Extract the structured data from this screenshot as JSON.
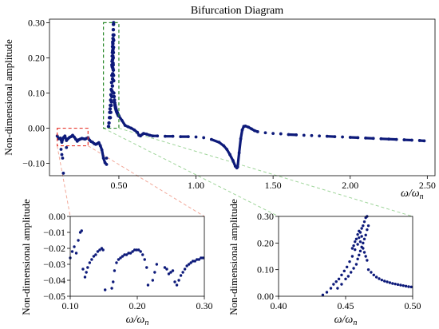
{
  "figure": {
    "marker_color": "#0d1a7a",
    "zoom_box_left_color": "#e8392f",
    "zoom_box_right_color": "#2e8b2e",
    "connector_left_color": "#f2a99a",
    "connector_right_color": "#9fd59a"
  },
  "chart_data": [
    {
      "id": "main",
      "type": "scatter",
      "title": "Bifurcation Diagram",
      "xlabel": "ω/ω",
      "xlabel_sub": "n",
      "ylabel": "Non-dimensional amplitude",
      "xlim": [
        0.05,
        2.55
      ],
      "ylim": [
        -0.135,
        0.31
      ],
      "xticks": [
        0.5,
        1.0,
        1.5,
        2.0,
        2.5
      ],
      "xtick_labels": [
        "0.50",
        "1.00",
        "1.50",
        "2.00",
        "2.50"
      ],
      "yticks": [
        -0.1,
        0.0,
        0.1,
        0.2,
        0.3
      ],
      "ytick_labels": [
        "−0.10",
        "0.00",
        "0.10",
        "0.20",
        "0.30"
      ],
      "grid": false,
      "series": [
        {
          "curve": [
            [
              0.1,
              -0.022
            ],
            [
              0.11,
              -0.03
            ],
            [
              0.12,
              -0.028
            ],
            [
              0.13,
              -0.04
            ],
            [
              0.14,
              -0.027
            ],
            [
              0.15,
              -0.022
            ],
            [
              0.16,
              -0.035
            ],
            [
              0.17,
              -0.03
            ],
            [
              0.18,
              -0.026
            ],
            [
              0.19,
              -0.024
            ],
            [
              0.2,
              -0.02
            ],
            [
              0.21,
              -0.025
            ],
            [
              0.22,
              -0.031
            ],
            [
              0.23,
              -0.037
            ],
            [
              0.24,
              -0.033
            ],
            [
              0.25,
              -0.031
            ],
            [
              0.26,
              -0.029
            ],
            [
              0.27,
              -0.03
            ],
            [
              0.28,
              -0.031
            ],
            [
              0.29,
              -0.029
            ],
            [
              0.3,
              -0.027
            ],
            [
              0.31,
              -0.034
            ],
            [
              0.32,
              -0.038
            ],
            [
              0.33,
              -0.04
            ],
            [
              0.34,
              -0.044
            ],
            [
              0.35,
              -0.046
            ],
            [
              0.36,
              -0.044
            ],
            [
              0.37,
              -0.041
            ],
            [
              0.38,
              -0.05
            ],
            [
              0.39,
              -0.062
            ],
            [
              0.4,
              -0.085
            ],
            [
              0.41,
              -0.098
            ],
            [
              0.42,
              -0.103
            ],
            [
              0.5,
              0.035
            ],
            [
              0.52,
              0.022
            ],
            [
              0.54,
              0.008
            ],
            [
              0.56,
              0.004
            ],
            [
              0.58,
              0.0
            ],
            [
              0.6,
              -0.005
            ],
            [
              0.62,
              -0.012
            ],
            [
              0.63,
              -0.02
            ],
            [
              0.64,
              -0.022
            ],
            [
              0.65,
              -0.018
            ],
            [
              0.66,
              -0.015
            ],
            [
              0.68,
              -0.017
            ],
            [
              0.7,
              -0.02
            ],
            [
              0.72,
              -0.022
            ],
            [
              0.75,
              -0.022
            ],
            [
              0.8,
              -0.023
            ],
            [
              0.85,
              -0.023
            ],
            [
              0.9,
              -0.024
            ],
            [
              0.95,
              -0.024
            ],
            [
              1.0,
              -0.025
            ],
            [
              1.05,
              -0.027
            ],
            [
              1.1,
              -0.032
            ],
            [
              1.15,
              -0.04
            ],
            [
              1.18,
              -0.05
            ],
            [
              1.2,
              -0.06
            ],
            [
              1.22,
              -0.075
            ],
            [
              1.24,
              -0.092
            ],
            [
              1.255,
              -0.108
            ],
            [
              1.265,
              -0.113
            ],
            [
              1.27,
              -0.11
            ],
            [
              1.28,
              -0.07
            ],
            [
              1.29,
              -0.03
            ],
            [
              1.3,
              -0.005
            ],
            [
              1.31,
              0.005
            ],
            [
              1.32,
              0.006
            ],
            [
              1.34,
              0.003
            ],
            [
              1.36,
              -0.002
            ],
            [
              1.38,
              -0.007
            ],
            [
              1.4,
              -0.01
            ],
            [
              1.45,
              -0.013
            ],
            [
              1.5,
              -0.015
            ],
            [
              1.55,
              -0.016
            ],
            [
              1.6,
              -0.018
            ],
            [
              1.65,
              -0.019
            ],
            [
              1.7,
              -0.02
            ],
            [
              1.75,
              -0.021
            ],
            [
              1.8,
              -0.022
            ],
            [
              1.85,
              -0.023
            ],
            [
              1.9,
              -0.024
            ],
            [
              1.95,
              -0.025
            ],
            [
              2.0,
              -0.026
            ],
            [
              2.05,
              -0.027
            ],
            [
              2.1,
              -0.028
            ],
            [
              2.15,
              -0.029
            ],
            [
              2.2,
              -0.03
            ],
            [
              2.25,
              -0.031
            ],
            [
              2.3,
              -0.032
            ],
            [
              2.35,
              -0.033
            ],
            [
              2.4,
              -0.034
            ],
            [
              2.45,
              -0.035
            ],
            [
              2.48,
              -0.036
            ]
          ],
          "points": [
            [
              0.13,
              -0.075
            ],
            [
              0.135,
              -0.085
            ],
            [
              0.14,
              -0.128
            ],
            [
              0.125,
              -0.06
            ],
            [
              0.16,
              -0.055
            ],
            [
              0.42,
              -0.085
            ]
          ]
        }
      ],
      "zoom_boxes": [
        {
          "x": [
            0.1,
            0.3
          ],
          "y": [
            -0.05,
            0.0
          ],
          "color_key": "zoom_box_left_color"
        },
        {
          "x": [
            0.4,
            0.5
          ],
          "y": [
            0.0,
            0.3
          ],
          "color_key": "zoom_box_right_color"
        }
      ]
    },
    {
      "id": "inset_left",
      "type": "scatter",
      "xlabel": "ω/ω",
      "xlabel_sub": "n",
      "ylabel": "Non-dimensional amplitude",
      "xlim": [
        0.1,
        0.3
      ],
      "ylim": [
        -0.05,
        0.0
      ],
      "xticks": [
        0.1,
        0.2,
        0.3
      ],
      "xtick_labels": [
        "0.10",
        "0.20",
        "0.30"
      ],
      "yticks": [
        0.0,
        -0.01,
        -0.02,
        -0.03,
        -0.04,
        -0.05
      ],
      "ytick_labels": [
        "0.00",
        "−0.01",
        "−0.02",
        "−0.03",
        "−0.04",
        "−0.05"
      ],
      "grid": false,
      "points": [
        [
          0.1,
          -0.026
        ],
        [
          0.103,
          -0.022
        ],
        [
          0.106,
          -0.019
        ],
        [
          0.109,
          -0.023
        ],
        [
          0.112,
          -0.015
        ],
        [
          0.115,
          -0.01
        ],
        [
          0.117,
          -0.009
        ],
        [
          0.119,
          -0.033
        ],
        [
          0.122,
          -0.038
        ],
        [
          0.124,
          -0.035
        ],
        [
          0.126,
          -0.032
        ],
        [
          0.129,
          -0.029
        ],
        [
          0.132,
          -0.027
        ],
        [
          0.135,
          -0.025
        ],
        [
          0.138,
          -0.024
        ],
        [
          0.141,
          -0.022
        ],
        [
          0.144,
          -0.021
        ],
        [
          0.147,
          -0.02
        ],
        [
          0.149,
          -0.021
        ],
        [
          0.152,
          -0.046
        ],
        [
          0.162,
          -0.045
        ],
        [
          0.164,
          -0.041
        ],
        [
          0.166,
          -0.034
        ],
        [
          0.169,
          -0.029
        ],
        [
          0.172,
          -0.027
        ],
        [
          0.175,
          -0.026
        ],
        [
          0.178,
          -0.025
        ],
        [
          0.181,
          -0.024
        ],
        [
          0.184,
          -0.024
        ],
        [
          0.187,
          -0.023
        ],
        [
          0.19,
          -0.023
        ],
        [
          0.193,
          -0.022
        ],
        [
          0.196,
          -0.021
        ],
        [
          0.199,
          -0.021
        ],
        [
          0.202,
          -0.021
        ],
        [
          0.205,
          -0.022
        ],
        [
          0.208,
          -0.024
        ],
        [
          0.211,
          -0.027
        ],
        [
          0.214,
          -0.032
        ],
        [
          0.216,
          -0.043
        ],
        [
          0.223,
          -0.04
        ],
        [
          0.226,
          -0.035
        ],
        [
          0.229,
          -0.03
        ],
        [
          0.241,
          -0.032
        ],
        [
          0.244,
          -0.033
        ],
        [
          0.247,
          -0.036
        ],
        [
          0.25,
          -0.035
        ],
        [
          0.253,
          -0.034
        ],
        [
          0.256,
          -0.041
        ],
        [
          0.259,
          -0.043
        ],
        [
          0.262,
          -0.04
        ],
        [
          0.265,
          -0.037
        ],
        [
          0.268,
          -0.035
        ],
        [
          0.271,
          -0.033
        ],
        [
          0.274,
          -0.031
        ],
        [
          0.277,
          -0.03
        ],
        [
          0.28,
          -0.029
        ],
        [
          0.283,
          -0.028
        ],
        [
          0.286,
          -0.028
        ],
        [
          0.289,
          -0.027
        ],
        [
          0.292,
          -0.027
        ],
        [
          0.295,
          -0.026
        ],
        [
          0.298,
          -0.026
        ]
      ]
    },
    {
      "id": "inset_right",
      "type": "scatter",
      "xlabel": "ω/ω",
      "xlabel_sub": "n",
      "ylabel": "Non-dimensional amplitude",
      "xlim": [
        0.4,
        0.5
      ],
      "ylim": [
        0.0,
        0.3
      ],
      "xticks": [
        0.4,
        0.45,
        0.5
      ],
      "xtick_labels": [
        "0.40",
        "0.45",
        "0.50"
      ],
      "yticks": [
        0.0,
        0.1,
        0.2,
        0.3
      ],
      "ytick_labels": [
        "0.00",
        "0.10",
        "0.20",
        "0.30"
      ],
      "grid": false,
      "points": [
        [
          0.433,
          0.005
        ],
        [
          0.436,
          0.015
        ],
        [
          0.439,
          0.03
        ],
        [
          0.441,
          0.045
        ],
        [
          0.443,
          0.055
        ],
        [
          0.445,
          0.065
        ],
        [
          0.447,
          0.08
        ],
        [
          0.449,
          0.095
        ],
        [
          0.451,
          0.11
        ],
        [
          0.453,
          0.13
        ],
        [
          0.455,
          0.15
        ],
        [
          0.457,
          0.175
        ],
        [
          0.459,
          0.195
        ],
        [
          0.46,
          0.22
        ],
        [
          0.461,
          0.24
        ],
        [
          0.462,
          0.255
        ],
        [
          0.463,
          0.265
        ],
        [
          0.464,
          0.28
        ],
        [
          0.465,
          0.295
        ],
        [
          0.466,
          0.3
        ],
        [
          0.444,
          0.03
        ],
        [
          0.447,
          0.045
        ],
        [
          0.45,
          0.065
        ],
        [
          0.452,
          0.075
        ],
        [
          0.454,
          0.09
        ],
        [
          0.456,
          0.105
        ],
        [
          0.458,
          0.12
        ],
        [
          0.459,
          0.14
        ],
        [
          0.46,
          0.155
        ],
        [
          0.461,
          0.17
        ],
        [
          0.462,
          0.185
        ],
        [
          0.463,
          0.2
        ],
        [
          0.464,
          0.215
        ],
        [
          0.465,
          0.23
        ],
        [
          0.466,
          0.25
        ],
        [
          0.467,
          0.265
        ],
        [
          0.455,
          0.18
        ],
        [
          0.456,
          0.19
        ],
        [
          0.457,
          0.205
        ],
        [
          0.458,
          0.215
        ],
        [
          0.459,
          0.232
        ],
        [
          0.46,
          0.245
        ],
        [
          0.461,
          0.205
        ],
        [
          0.462,
          0.225
        ],
        [
          0.463,
          0.18
        ],
        [
          0.464,
          0.165
        ],
        [
          0.465,
          0.15
        ],
        [
          0.466,
          0.135
        ],
        [
          0.467,
          0.1
        ],
        [
          0.469,
          0.09
        ],
        [
          0.471,
          0.08
        ],
        [
          0.473,
          0.072
        ],
        [
          0.475,
          0.066
        ],
        [
          0.477,
          0.061
        ],
        [
          0.479,
          0.057
        ],
        [
          0.481,
          0.054
        ],
        [
          0.483,
          0.051
        ],
        [
          0.485,
          0.048
        ],
        [
          0.487,
          0.046
        ],
        [
          0.489,
          0.044
        ],
        [
          0.491,
          0.042
        ],
        [
          0.493,
          0.04
        ],
        [
          0.495,
          0.038
        ],
        [
          0.497,
          0.036
        ],
        [
          0.499,
          0.035
        ]
      ]
    }
  ]
}
